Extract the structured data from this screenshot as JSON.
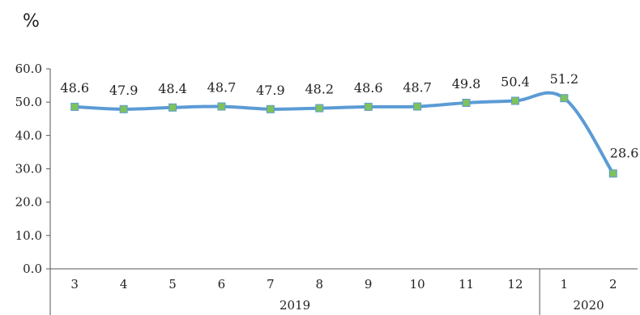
{
  "chart_data": {
    "type": "line",
    "unit_label": "%",
    "categories": [
      "3",
      "4",
      "5",
      "6",
      "7",
      "8",
      "9",
      "10",
      "11",
      "12",
      "1",
      "2"
    ],
    "year_groups": [
      {
        "label": "2019",
        "count": 10
      },
      {
        "label": "2020",
        "count": 2
      }
    ],
    "values": [
      48.6,
      47.9,
      48.4,
      48.7,
      47.9,
      48.2,
      48.6,
      48.7,
      49.8,
      50.4,
      51.2,
      28.6
    ],
    "data_labels": [
      "48.6",
      "47.9",
      "48.4",
      "48.7",
      "47.9",
      "48.2",
      "48.6",
      "48.7",
      "49.8",
      "50.4",
      "51.2",
      "28.6"
    ],
    "yticks": [
      "0.0",
      "10.0",
      "20.0",
      "30.0",
      "40.0",
      "50.0",
      "60.0"
    ],
    "ylim": [
      0,
      60
    ],
    "grid": false,
    "line_color": "#5b9bd5",
    "marker_color": "#7fc25a",
    "marker_border": "#5b9bd5"
  }
}
